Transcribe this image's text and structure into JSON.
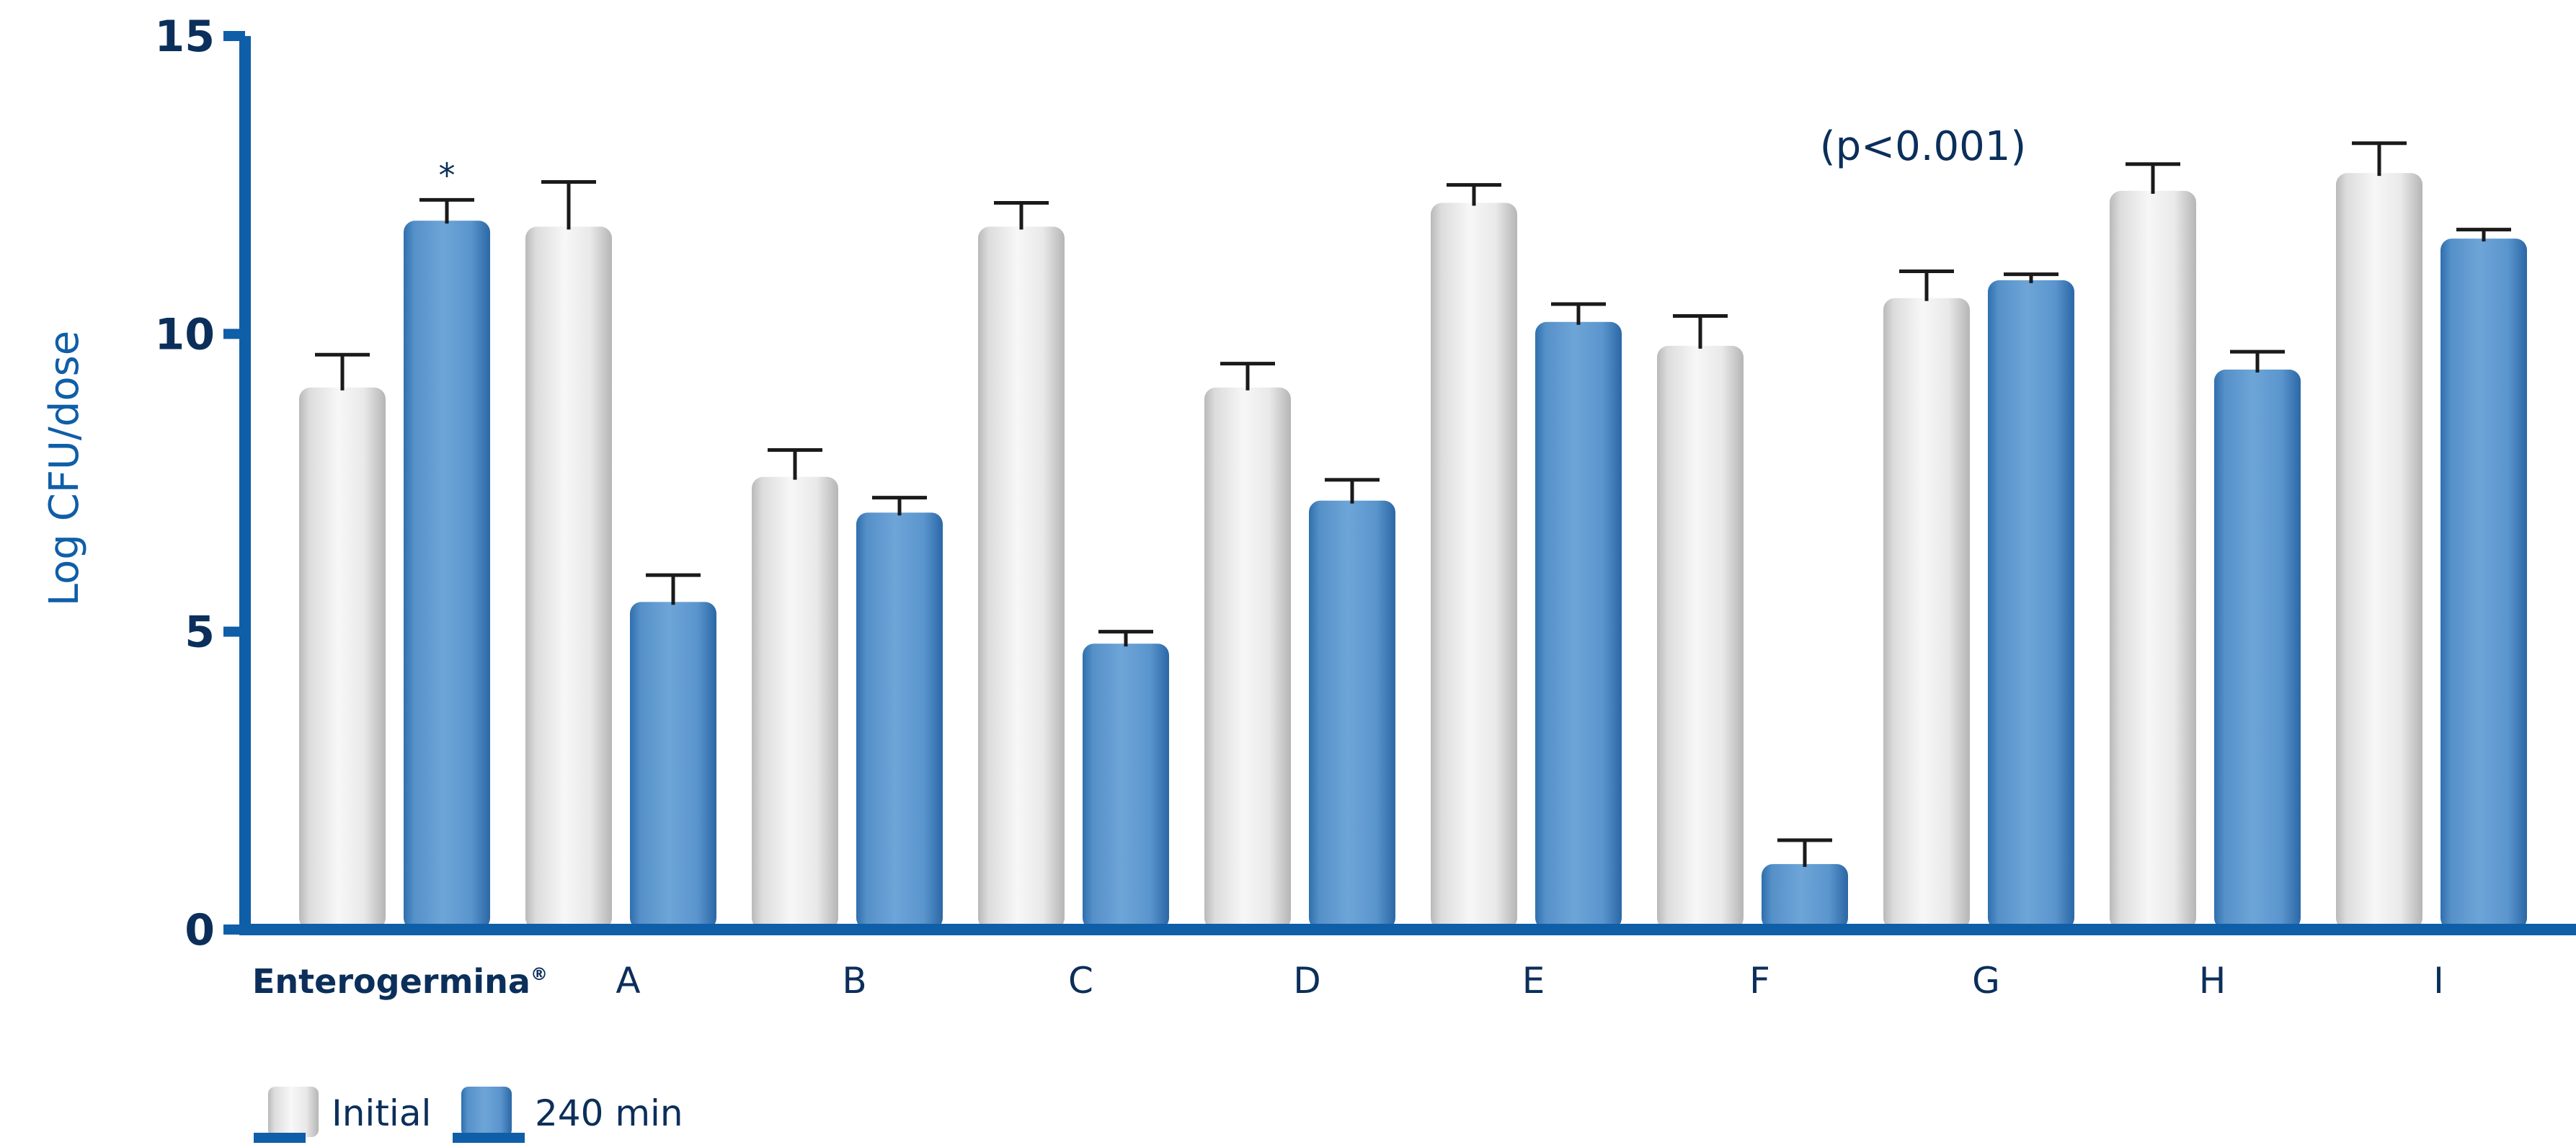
{
  "chart_data": {
    "type": "bar",
    "title": "",
    "ylabel": "Log CFU/dose",
    "xlabel": "",
    "ylim": [
      0,
      15
    ],
    "yticks": [
      0,
      5,
      10,
      15
    ],
    "categories": [
      "Enterogermina",
      "A",
      "B",
      "C",
      "D",
      "E",
      "F",
      "G",
      "H",
      "I"
    ],
    "registered_mark": "®",
    "series": [
      {
        "name": "Initial",
        "color": "#e6e6e6",
        "values": [
          9.1,
          11.8,
          7.6,
          11.8,
          9.1,
          12.2,
          9.8,
          10.6,
          12.4,
          12.7
        ],
        "errors": [
          0.55,
          0.75,
          0.45,
          0.4,
          0.4,
          0.3,
          0.5,
          0.45,
          0.45,
          0.5
        ]
      },
      {
        "name": "240 min",
        "color": "#5b96cc",
        "values": [
          11.9,
          5.5,
          7.0,
          4.8,
          7.2,
          10.2,
          1.1,
          10.9,
          9.4,
          11.6
        ],
        "errors": [
          0.35,
          0.45,
          0.25,
          0.2,
          0.35,
          0.3,
          0.4,
          0.1,
          0.3,
          0.15
        ]
      }
    ],
    "annotations": {
      "significance_marker": "*",
      "significance_category": "Enterogermina",
      "p_value_text": "(p<0.001)"
    },
    "legend": {
      "placement": "bottom-left"
    },
    "grid": false
  }
}
